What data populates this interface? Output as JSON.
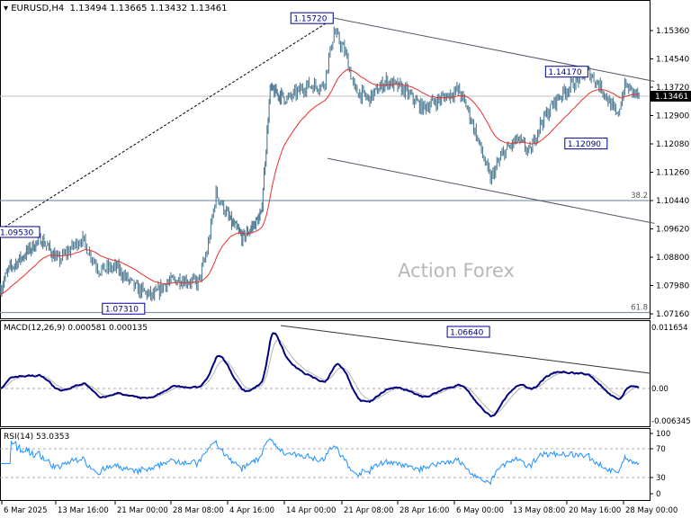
{
  "header": {
    "symbol": "EURUSD,H4",
    "ohlc": "1.13494 1.13665 1.13432 1.13461"
  },
  "watermark": "Action Forex",
  "colors": {
    "bars": "#4f7a93",
    "ma": "#e8302a",
    "macd": "#000080",
    "signal": "#b4b4b4",
    "rsi": "#1e90ff",
    "current": "#000000"
  },
  "chart_data": [
    {
      "type": "ohlc",
      "title": "EURUSD,H4",
      "ylim": [
        1.0716,
        1.1536
      ],
      "yticks": [
        "1.15360",
        "1.14540",
        "1.13720",
        "1.12900",
        "1.12080",
        "1.11260",
        "1.10440",
        "1.09620",
        "1.08800",
        "1.07980",
        "1.07160"
      ],
      "xticks": [
        [
          "6 Mar 2025",
          "2025-03-06T00:00"
        ],
        [
          "13 Mar 16:00",
          "2025-03-13T16:00"
        ],
        [
          "21 Mar 00:00",
          "2025-03-21T00:00"
        ],
        [
          "28 Mar 08:00",
          "2025-03-28T08:00"
        ],
        [
          "4 Apr 16:00",
          "2025-04-04T16:00"
        ],
        [
          "14 Apr 00:00",
          "2025-04-14T00:00"
        ],
        [
          "21 Apr 08:00",
          "2025-04-21T08:00"
        ],
        [
          "28 Apr 16:00",
          "2025-04-28T16:00"
        ],
        [
          "6 May 00:00",
          "2025-05-06T00:00"
        ],
        [
          "13 May 08:00",
          "2025-05-13T08:00"
        ],
        [
          "20 May 16:00",
          "2025-05-20T16:00"
        ],
        [
          "28 May 00:00",
          "2025-05-28T00:00"
        ]
      ],
      "current_price": "1.13461",
      "close_path": [
        [
          "2025-03-05T20:00",
          1.0791
        ],
        [
          "2025-03-07T00:00",
          1.0844
        ],
        [
          "2025-03-09T00:00",
          1.0883
        ],
        [
          "2025-03-11T12:00",
          1.0935
        ],
        [
          "2025-03-14T00:00",
          1.087
        ],
        [
          "2025-03-16T20:00",
          1.0935
        ],
        [
          "2025-03-19T00:00",
          1.0844
        ],
        [
          "2025-03-21T04:00",
          1.085
        ],
        [
          "2025-03-23T16:00",
          1.0791
        ],
        [
          "2025-03-26T00:00",
          1.0765
        ],
        [
          "2025-03-27T16:00",
          1.0805
        ],
        [
          "2025-03-29T12:00",
          1.0817
        ],
        [
          "2025-03-31T20:00",
          1.0805
        ],
        [
          "2025-04-02T00:00",
          1.0896
        ],
        [
          "2025-04-03T04:00",
          1.1065
        ],
        [
          "2025-04-05T00:00",
          1.0987
        ],
        [
          "2025-04-07T04:00",
          1.0935
        ],
        [
          "2025-04-10T04:00",
          1.1
        ],
        [
          "2025-04-11T16:00",
          1.1364
        ],
        [
          "2025-04-14T12:00",
          1.1338
        ],
        [
          "2025-04-16T20:00",
          1.1377
        ],
        [
          "2025-04-19T00:00",
          1.1377
        ],
        [
          "2025-04-20T08:00",
          1.1533
        ],
        [
          "2025-04-21T20:00",
          1.1468
        ],
        [
          "2025-04-23T00:00",
          1.1364
        ],
        [
          "2025-04-24T20:00",
          1.1338
        ],
        [
          "2025-04-27T04:00",
          1.139
        ],
        [
          "2025-04-29T12:00",
          1.1364
        ],
        [
          "2025-05-01T20:00",
          1.1312
        ],
        [
          "2025-05-04T04:00",
          1.1338
        ],
        [
          "2025-05-06T12:00",
          1.1364
        ],
        [
          "2025-05-07T16:00",
          1.1312
        ],
        [
          "2025-05-08T20:00",
          1.1234
        ],
        [
          "2025-05-10T16:00",
          1.1104
        ],
        [
          "2025-05-11T04:00",
          1.113
        ],
        [
          "2025-05-12T08:00",
          1.1182
        ],
        [
          "2025-05-14T04:00",
          1.1221
        ],
        [
          "2025-05-15T20:00",
          1.1182
        ],
        [
          "2025-05-17T00:00",
          1.126
        ],
        [
          "2025-05-19T08:00",
          1.1338
        ],
        [
          "2025-05-21T20:00",
          1.139
        ],
        [
          "2025-05-23T12:00",
          1.1416
        ],
        [
          "2025-05-25T08:00",
          1.1364
        ],
        [
          "2025-05-27T04:00",
          1.1286
        ],
        [
          "2025-05-28T04:00",
          1.1377
        ],
        [
          "2025-05-30T00:00",
          1.1346
        ]
      ],
      "labels": [
        {
          "text": "1.15720",
          "t": "2025-04-20T08:00",
          "p": 1.1572
        },
        {
          "text": "1.09530",
          "t": "2025-03-11T12:00",
          "p": 1.0953
        },
        {
          "text": "1.07310",
          "t": "2025-03-25T00:00",
          "p": 1.0731
        },
        {
          "text": "1.06640",
          "t": "2025-05-10T16:00",
          "p": 1.0664
        },
        {
          "text": "1.14170",
          "t": "2025-05-23T12:00",
          "p": 1.1417
        },
        {
          "text": "1.12090",
          "t": "2025-05-26T00:00",
          "p": 1.1209
        }
      ],
      "fib_levels": [
        {
          "text": "38.2",
          "p": 1.1044
        },
        {
          "text": "61.8",
          "p": 1.072
        }
      ],
      "trendlines": [
        {
          "style": "dashed",
          "from": [
            "2025-03-05T20:00",
            1.096
          ],
          "to": [
            "2025-04-20T08:00",
            1.1572
          ]
        },
        {
          "style": "solid",
          "from": [
            "2025-04-20T08:00",
            1.1572
          ],
          "to": [
            "2025-06-01T00:00",
            1.1389
          ]
        },
        {
          "style": "solid",
          "from": [
            "2025-04-19T12:00",
            1.1166
          ],
          "to": [
            "2025-06-01T00:00",
            1.0978
          ]
        }
      ]
    },
    {
      "type": "line",
      "title": "MACD(12,26,9) 0.000581 0.000135",
      "yticks": [
        "0.011654",
        "0.00",
        "-0.006345"
      ],
      "ylim": [
        -0.006345,
        0.011654
      ]
    },
    {
      "type": "line",
      "title": "RSI(14) 53.0353",
      "yticks": [
        "100",
        "70",
        "30",
        "0"
      ],
      "ylim": [
        0,
        100
      ]
    }
  ]
}
